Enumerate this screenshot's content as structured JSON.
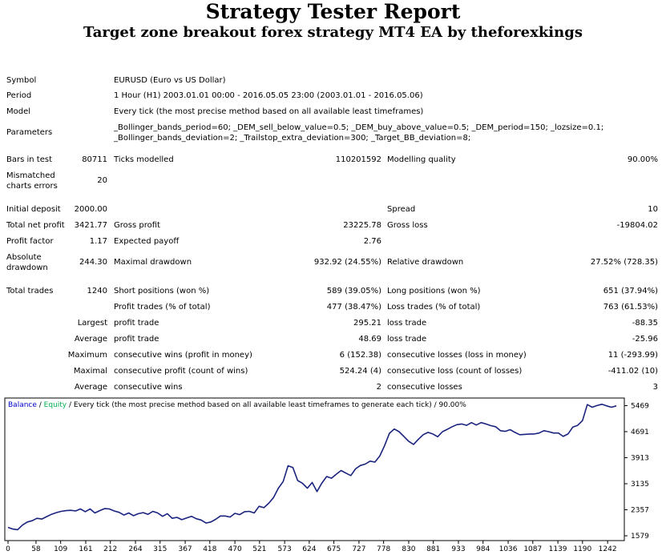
{
  "header": {
    "title": "Strategy Tester Report",
    "subtitle": "Target zone breakout forex strategy MT4 EA by theforexkings"
  },
  "info": {
    "symbol_label": "Symbol",
    "symbol_value": "EURUSD (Euro vs US Dollar)",
    "period_label": "Period",
    "period_value": "1 Hour (H1) 2003.01.01 00:00 - 2016.05.05 23:00 (2003.01.01 - 2016.05.06)",
    "model_label": "Model",
    "model_value": "Every tick (the most precise method based on all available least timeframes)",
    "parameters_label": "Parameters",
    "parameters_line1": "_Bollinger_bands_period=60; _DEM_sell_below_value=0.5; _DEM_buy_above_value=0.5; _DEM_period=150; _lozsize=0.1;",
    "parameters_line2": "_Bollinger_bands_deviation=2; _Trailstop_extra_deviation=300; _Target_BB_deviation=8;"
  },
  "stats": {
    "bars_label": "Bars in test",
    "bars_value": "80711",
    "ticks_label": "Ticks modelled",
    "ticks_value": "110201592",
    "quality_label": "Modelling quality",
    "quality_value": "90.00%",
    "mismatch_label": "Mismatched charts errors",
    "mismatch_value": "20",
    "deposit_label": "Initial deposit",
    "deposit_value": "2000.00",
    "spread_label": "Spread",
    "spread_value": "10",
    "netprofit_label": "Total net profit",
    "netprofit_value": "3421.77",
    "grossprofit_label": "Gross profit",
    "grossprofit_value": "23225.78",
    "grossloss_label": "Gross loss",
    "grossloss_value": "-19804.02",
    "pf_label": "Profit factor",
    "pf_value": "1.17",
    "payoff_label": "Expected payoff",
    "payoff_value": "2.76",
    "absdd_label": "Absolute drawdown",
    "absdd_value": "244.30",
    "maxdd_label": "Maximal drawdown",
    "maxdd_value": "932.92 (24.55%)",
    "reldd_label": "Relative drawdown",
    "reldd_value": "27.52% (728.35)",
    "trades_label": "Total trades",
    "trades_value": "1240",
    "short_label": "Short positions (won %)",
    "short_value": "589 (39.05%)",
    "long_label": "Long positions (won %)",
    "long_value": "651 (37.94%)",
    "profittrades_label": "Profit trades (% of total)",
    "profittrades_value": "477 (38.47%)",
    "losstrades_label": "Loss trades (% of total)",
    "losstrades_value": "763 (61.53%)",
    "largest_label": "Largest",
    "largest_profit_label": "profit trade",
    "largest_profit_value": "295.21",
    "largest_loss_label": "loss trade",
    "largest_loss_value": "-88.35",
    "average_label": "Average",
    "average_profit_label": "profit trade",
    "average_profit_value": "48.69",
    "average_loss_label": "loss trade",
    "average_loss_value": "-25.96",
    "maximum_label": "Maximum",
    "max_wins_label": "consecutive wins (profit in money)",
    "max_wins_value": "6 (152.38)",
    "max_losses_label": "consecutive losses (loss in money)",
    "max_losses_value": "11 (-293.99)",
    "maximal_label": "Maximal",
    "maximal_profit_label": "consecutive profit (count of wins)",
    "maximal_profit_value": "524.24 (4)",
    "maximal_loss_label": "consecutive loss (count of losses)",
    "maximal_loss_value": "-411.02 (10)",
    "avg_label": "Average",
    "avg_wins_label": "consecutive wins",
    "avg_wins_value": "2",
    "avg_losses_label": "consecutive losses",
    "avg_losses_value": "3"
  },
  "chart_data": {
    "type": "line",
    "legend": {
      "balance": "Balance",
      "sep": " / ",
      "equity": "Equity",
      "rest": " / Every tick (the most precise method based on all available least timeframes to generate each tick) / 90.00%"
    },
    "colors": {
      "balance": "#1a237e",
      "equity": "#00b050",
      "legend_balance": "#0000cc"
    },
    "grid": false,
    "xticks": [
      0,
      58,
      109,
      161,
      212,
      264,
      315,
      367,
      418,
      470,
      521,
      573,
      624,
      675,
      727,
      778,
      830,
      881,
      933,
      984,
      1036,
      1087,
      1139,
      1190,
      1242
    ],
    "yticks": [
      1579,
      2357,
      3135,
      3913,
      4691,
      5469
    ],
    "xlim": [
      0,
      1270
    ],
    "ylim": [
      1579,
      5600
    ],
    "series": [
      {
        "x": [
          0,
          10,
          20,
          30,
          40,
          50,
          60,
          70,
          80,
          90,
          100,
          110,
          120,
          130,
          140,
          150,
          160,
          170,
          180,
          190,
          200,
          210,
          220,
          230,
          240,
          250,
          260,
          270,
          280,
          290,
          300,
          310,
          320,
          330,
          340,
          350,
          360,
          370,
          380,
          390,
          400,
          410,
          420,
          430,
          440,
          450,
          460,
          470,
          480,
          490,
          500,
          510,
          520,
          530,
          540,
          550,
          560,
          570,
          580,
          590,
          600,
          610,
          620,
          630,
          640,
          650,
          660,
          670,
          680,
          690,
          700,
          710,
          720,
          730,
          740,
          750,
          760,
          770,
          780,
          790,
          800,
          810,
          820,
          830,
          840,
          850,
          860,
          870,
          880,
          890,
          900,
          910,
          920,
          930,
          940,
          950,
          960,
          970,
          980,
          990,
          1000,
          1010,
          1020,
          1030,
          1040,
          1050,
          1060,
          1070,
          1080,
          1090,
          1100,
          1110,
          1120,
          1130,
          1140,
          1150,
          1160,
          1170,
          1180,
          1190,
          1200,
          1210,
          1220,
          1230,
          1240,
          1250,
          1260
        ],
        "y": [
          1830,
          1780,
          1760,
          1900,
          1990,
          2030,
          2100,
          2080,
          2150,
          2220,
          2270,
          2310,
          2330,
          2340,
          2320,
          2380,
          2300,
          2380,
          2260,
          2330,
          2390,
          2380,
          2320,
          2280,
          2200,
          2260,
          2180,
          2240,
          2270,
          2220,
          2310,
          2260,
          2160,
          2240,
          2100,
          2130,
          2060,
          2110,
          2160,
          2090,
          2050,
          1960,
          1990,
          2070,
          2170,
          2170,
          2140,
          2250,
          2210,
          2300,
          2310,
          2260,
          2460,
          2420,
          2550,
          2720,
          3000,
          3200,
          3670,
          3620,
          3230,
          3150,
          3000,
          3170,
          2900,
          3150,
          3350,
          3300,
          3420,
          3530,
          3450,
          3380,
          3580,
          3680,
          3720,
          3810,
          3780,
          3960,
          4270,
          4640,
          4770,
          4690,
          4550,
          4400,
          4310,
          4460,
          4600,
          4670,
          4620,
          4540,
          4690,
          4760,
          4840,
          4900,
          4920,
          4880,
          4960,
          4890,
          4960,
          4920,
          4870,
          4840,
          4720,
          4700,
          4750,
          4670,
          4600,
          4610,
          4620,
          4620,
          4650,
          4720,
          4690,
          4650,
          4650,
          4550,
          4620,
          4830,
          4880,
          5020,
          5500,
          5420,
          5470,
          5510,
          5460,
          5420,
          5460
        ]
      }
    ]
  }
}
